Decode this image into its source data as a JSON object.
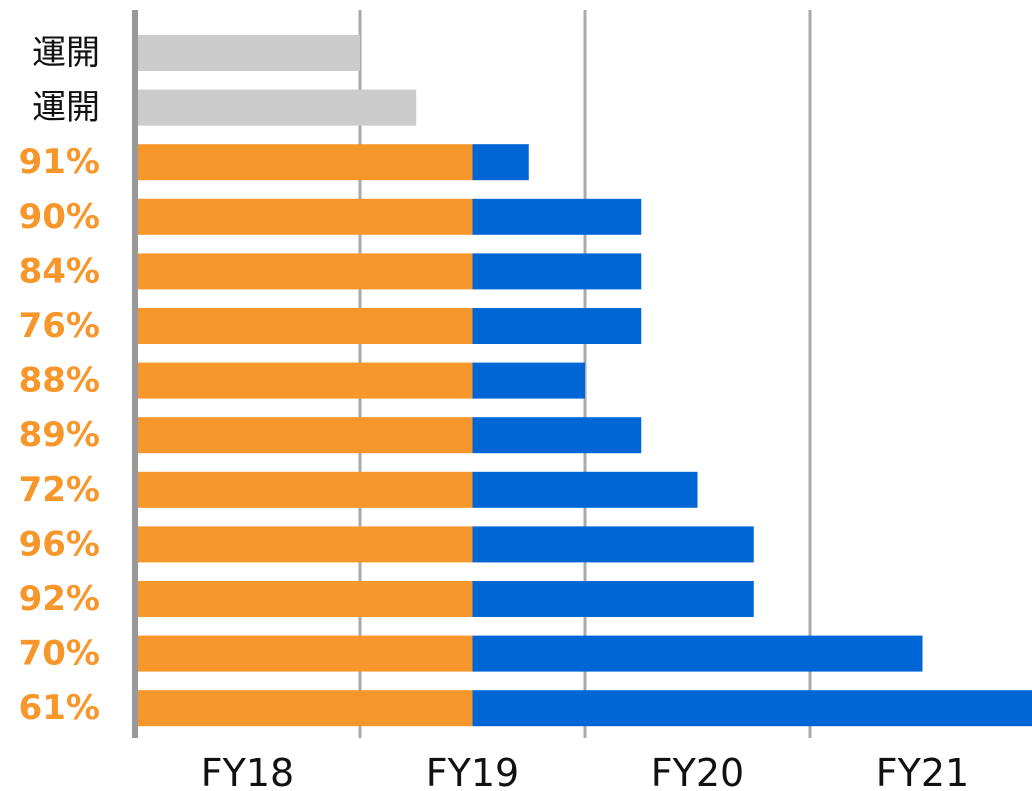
{
  "chart_data": {
    "type": "bar",
    "orientation": "horizontal",
    "stacked": true,
    "x_ticks": [
      "FY18",
      "FY19",
      "FY20",
      "FY21"
    ],
    "xlim": [
      0,
      4
    ],
    "grid": true,
    "colors": {
      "gray_bar": "#cccccc",
      "orange": "#f7962a",
      "blue": "#0066d6",
      "label_dark": "#111111",
      "label_orange": "#f7962a",
      "grid": "#aaaaaa",
      "axis": "#999999"
    },
    "rows": [
      {
        "label": "運開",
        "style": "gray",
        "segments": [
          {
            "color": "gray_bar",
            "start": 0,
            "end": 1.0
          }
        ]
      },
      {
        "label": "運開",
        "style": "gray",
        "segments": [
          {
            "color": "gray_bar",
            "start": 0,
            "end": 1.25
          }
        ]
      },
      {
        "label": "91%",
        "style": "pct",
        "segments": [
          {
            "color": "orange",
            "start": 0,
            "end": 1.5
          },
          {
            "color": "blue",
            "start": 1.5,
            "end": 1.75
          }
        ]
      },
      {
        "label": "90%",
        "style": "pct",
        "segments": [
          {
            "color": "orange",
            "start": 0,
            "end": 1.5
          },
          {
            "color": "blue",
            "start": 1.5,
            "end": 2.25
          }
        ]
      },
      {
        "label": "84%",
        "style": "pct",
        "segments": [
          {
            "color": "orange",
            "start": 0,
            "end": 1.5
          },
          {
            "color": "blue",
            "start": 1.5,
            "end": 2.25
          }
        ]
      },
      {
        "label": "76%",
        "style": "pct",
        "segments": [
          {
            "color": "orange",
            "start": 0,
            "end": 1.5
          },
          {
            "color": "blue",
            "start": 1.5,
            "end": 2.25
          }
        ]
      },
      {
        "label": "88%",
        "style": "pct",
        "segments": [
          {
            "color": "orange",
            "start": 0,
            "end": 1.5
          },
          {
            "color": "blue",
            "start": 1.5,
            "end": 2.0
          }
        ]
      },
      {
        "label": "89%",
        "style": "pct",
        "segments": [
          {
            "color": "orange",
            "start": 0,
            "end": 1.5
          },
          {
            "color": "blue",
            "start": 1.5,
            "end": 2.25
          }
        ]
      },
      {
        "label": "72%",
        "style": "pct",
        "segments": [
          {
            "color": "orange",
            "start": 0,
            "end": 1.5
          },
          {
            "color": "blue",
            "start": 1.5,
            "end": 2.5
          }
        ]
      },
      {
        "label": "96%",
        "style": "pct",
        "segments": [
          {
            "color": "orange",
            "start": 0,
            "end": 1.5
          },
          {
            "color": "blue",
            "start": 1.5,
            "end": 2.75
          }
        ]
      },
      {
        "label": "92%",
        "style": "pct",
        "segments": [
          {
            "color": "orange",
            "start": 0,
            "end": 1.5
          },
          {
            "color": "blue",
            "start": 1.5,
            "end": 2.75
          }
        ]
      },
      {
        "label": "70%",
        "style": "pct",
        "segments": [
          {
            "color": "orange",
            "start": 0,
            "end": 1.5
          },
          {
            "color": "blue",
            "start": 1.5,
            "end": 3.5
          }
        ]
      },
      {
        "label": "61%",
        "style": "pct",
        "segments": [
          {
            "color": "orange",
            "start": 0,
            "end": 1.5
          },
          {
            "color": "blue",
            "start": 1.5,
            "end": 4.0
          }
        ]
      }
    ]
  }
}
